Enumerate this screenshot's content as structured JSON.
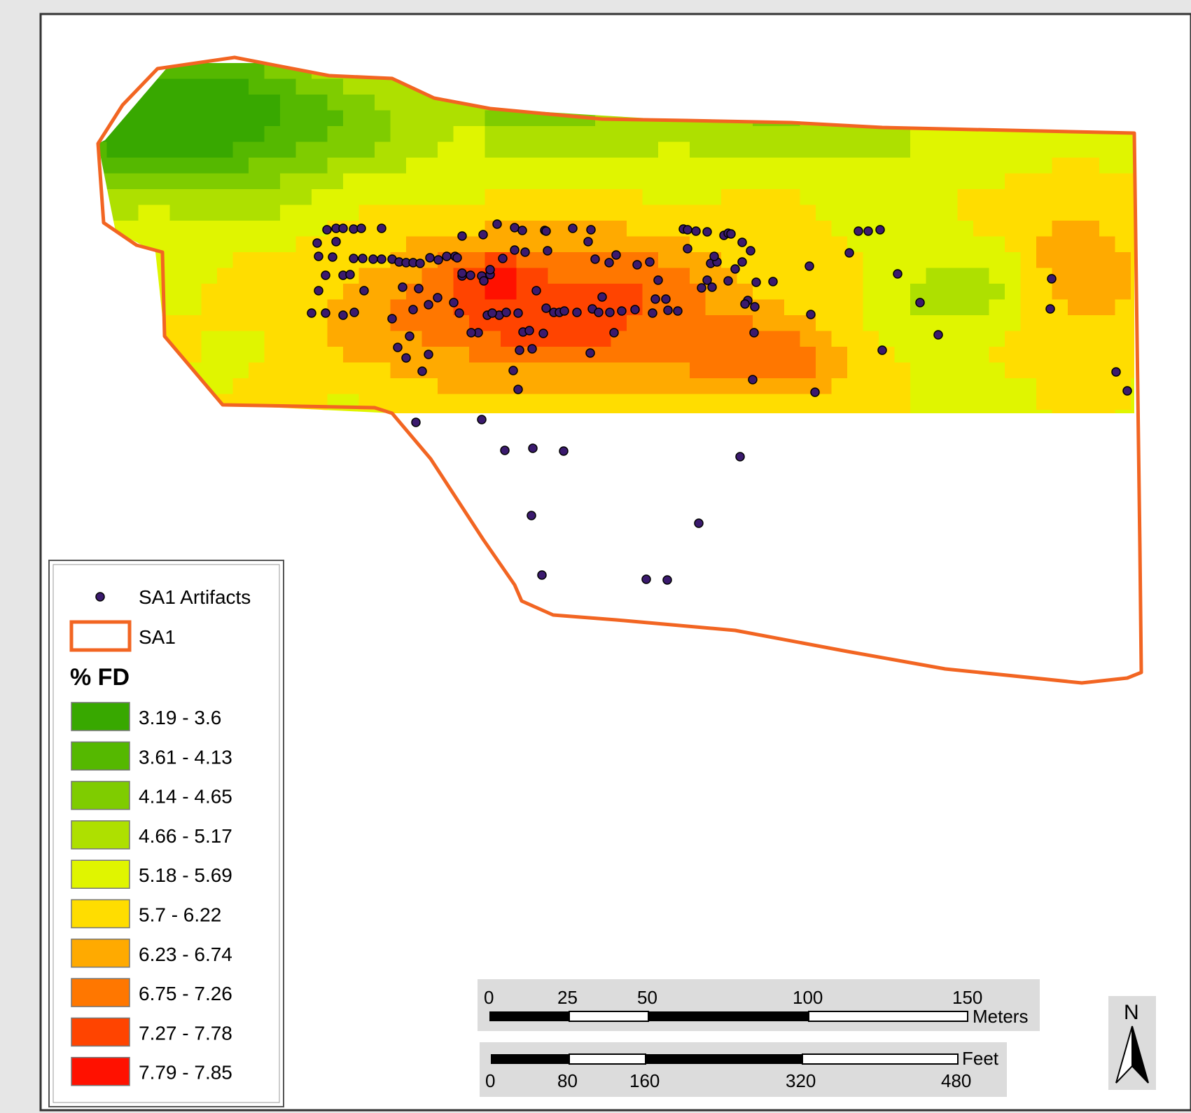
{
  "legend": {
    "artifacts_label": "SA1 Artifacts",
    "boundary_label": "SA1",
    "title": "% FD",
    "classes": [
      {
        "label": "3.19 - 3.6",
        "color": "#38a800"
      },
      {
        "label": "3.61 - 4.13",
        "color": "#55b800"
      },
      {
        "label": "4.14 - 4.65",
        "color": "#7fcc00"
      },
      {
        "label": "4.66 - 5.17",
        "color": "#aee000"
      },
      {
        "label": "5.18 - 5.69",
        "color": "#e0f500"
      },
      {
        "label": "5.7 - 6.22",
        "color": "#ffdd00"
      },
      {
        "label": "6.23 - 6.74",
        "color": "#ffaa00"
      },
      {
        "label": "6.75 - 7.26",
        "color": "#ff7700"
      },
      {
        "label": "7.27 - 7.78",
        "color": "#ff4400"
      },
      {
        "label": "7.79 - 7.85",
        "color": "#ff1100"
      }
    ]
  },
  "scalebar_meters": {
    "unit": "Meters",
    "ticks": [
      "0",
      "25",
      "50",
      "100",
      "150"
    ]
  },
  "scalebar_feet": {
    "unit": "Feet",
    "ticks": [
      "0",
      "80",
      "160",
      "320",
      "480"
    ]
  },
  "north_arrow": {
    "label": "N"
  },
  "colors": {
    "boundary": "#f26522",
    "artifact_fill": "#3b1a6e",
    "frame_bg": "#e6e6e6"
  }
}
